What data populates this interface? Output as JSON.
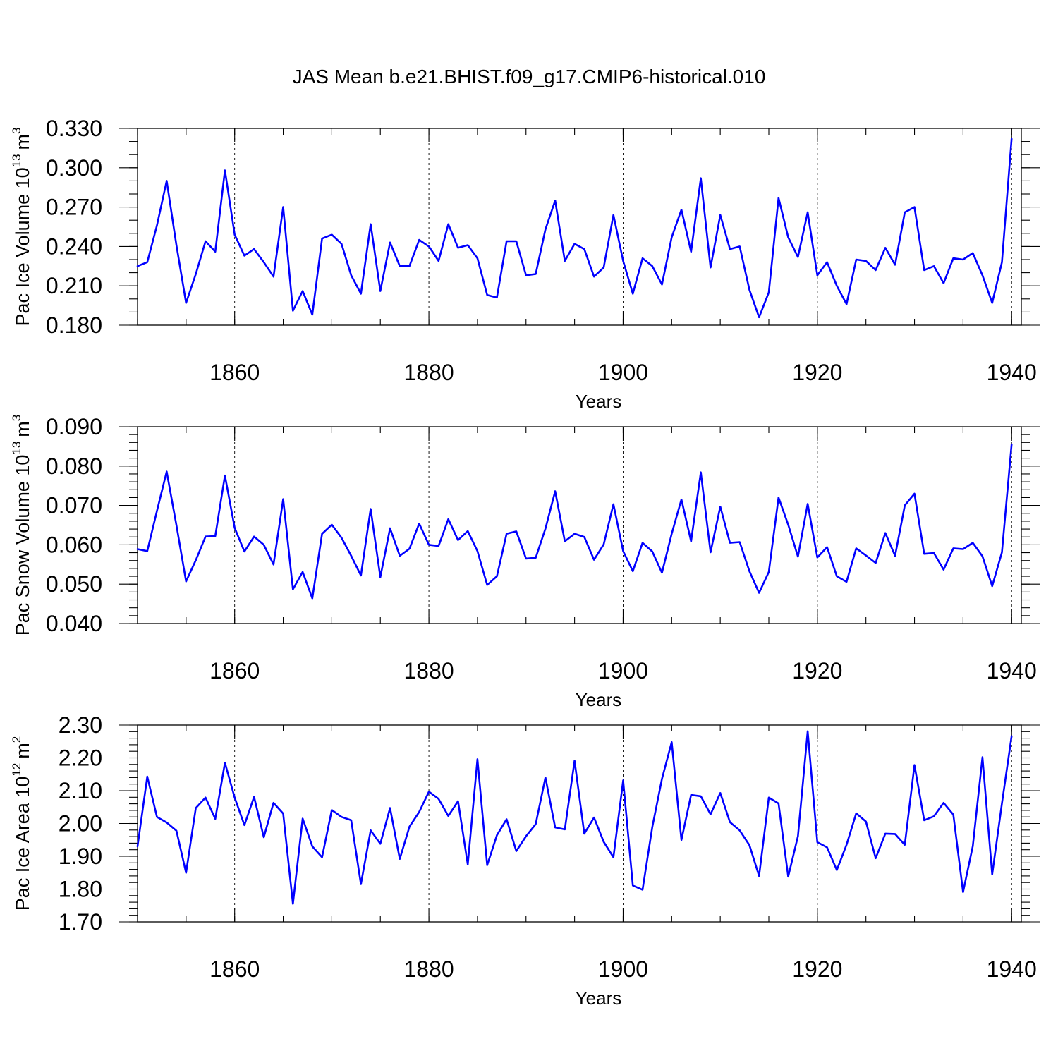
{
  "title": "JAS Mean b.e21.BHIST.f09_g17.CMIP6-historical.010",
  "colors": {
    "series": "#0000ff",
    "axis": "#000000",
    "background": "#ffffff"
  },
  "chart_data": [
    {
      "type": "line",
      "name": "ice-volume",
      "ylabel": "Pac Ice Volume 10",
      "ylabel_exp": "13",
      "ylabel_unit": "m",
      "ylabel_unit_exp": "3",
      "xlabel": "Years",
      "xlim": [
        1850,
        1941
      ],
      "ylim": [
        0.18,
        0.33
      ],
      "yticks": [
        0.18,
        0.21,
        0.24,
        0.27,
        0.3,
        0.33
      ],
      "ytick_labels": [
        "0.180",
        "0.210",
        "0.240",
        "0.270",
        "0.300",
        "0.330"
      ],
      "yminor": 0.01,
      "xticks": [
        1860,
        1880,
        1900,
        1920,
        1940
      ],
      "xtick_labels": [
        "1860",
        "1880",
        "1900",
        "1920",
        "1940"
      ],
      "x_start": 1850,
      "values": [
        0.225,
        0.228,
        0.256,
        0.29,
        0.241,
        0.197,
        0.219,
        0.244,
        0.236,
        0.298,
        0.249,
        0.233,
        0.238,
        0.228,
        0.217,
        0.27,
        0.191,
        0.206,
        0.188,
        0.246,
        0.249,
        0.242,
        0.218,
        0.204,
        0.257,
        0.206,
        0.243,
        0.225,
        0.225,
        0.245,
        0.24,
        0.229,
        0.257,
        0.239,
        0.241,
        0.231,
        0.203,
        0.201,
        0.244,
        0.244,
        0.218,
        0.219,
        0.253,
        0.275,
        0.229,
        0.242,
        0.238,
        0.217,
        0.224,
        0.264,
        0.229,
        0.204,
        0.231,
        0.225,
        0.211,
        0.247,
        0.268,
        0.236,
        0.292,
        0.224,
        0.264,
        0.238,
        0.24,
        0.207,
        0.186,
        0.205,
        0.277,
        0.247,
        0.232,
        0.266,
        0.218,
        0.228,
        0.21,
        0.196,
        0.23,
        0.229,
        0.222,
        0.239,
        0.226,
        0.266,
        0.27,
        0.222,
        0.225,
        0.212,
        0.231,
        0.23,
        0.235,
        0.218,
        0.197,
        0.228,
        0.322
      ]
    },
    {
      "type": "line",
      "name": "snow-volume",
      "ylabel": "Pac Snow Volume 10",
      "ylabel_exp": "13",
      "ylabel_unit": "m",
      "ylabel_unit_exp": "3",
      "xlabel": "Years",
      "xlim": [
        1850,
        1941
      ],
      "ylim": [
        0.04,
        0.09
      ],
      "yticks": [
        0.04,
        0.05,
        0.06,
        0.07,
        0.08,
        0.09
      ],
      "ytick_labels": [
        "0.040",
        "0.050",
        "0.060",
        "0.070",
        "0.080",
        "0.090"
      ],
      "yminor": 0.002,
      "xticks": [
        1860,
        1880,
        1900,
        1920,
        1940
      ],
      "xtick_labels": [
        "1860",
        "1880",
        "1900",
        "1920",
        "1940"
      ],
      "x_start": 1850,
      "values": [
        0.0589,
        0.0584,
        0.0686,
        0.0786,
        0.065,
        0.0507,
        0.0561,
        0.0621,
        0.0622,
        0.0776,
        0.0643,
        0.0583,
        0.0621,
        0.06,
        0.055,
        0.0716,
        0.0487,
        0.0531,
        0.0464,
        0.0628,
        0.0651,
        0.0618,
        0.0572,
        0.0522,
        0.0691,
        0.0518,
        0.0642,
        0.0572,
        0.059,
        0.0654,
        0.06,
        0.0597,
        0.0665,
        0.0612,
        0.0635,
        0.0584,
        0.0498,
        0.052,
        0.0628,
        0.0634,
        0.0565,
        0.0567,
        0.0641,
        0.0736,
        0.0609,
        0.0628,
        0.062,
        0.0562,
        0.0601,
        0.0703,
        0.0584,
        0.0533,
        0.0605,
        0.0583,
        0.0529,
        0.0628,
        0.0715,
        0.0609,
        0.0784,
        0.0581,
        0.0697,
        0.0605,
        0.0607,
        0.0533,
        0.0478,
        0.0531,
        0.072,
        0.0651,
        0.057,
        0.0704,
        0.0568,
        0.0594,
        0.052,
        0.0506,
        0.0591,
        0.0573,
        0.0554,
        0.063,
        0.0572,
        0.07,
        0.073,
        0.0577,
        0.0579,
        0.0537,
        0.0591,
        0.0589,
        0.0605,
        0.0571,
        0.0495,
        0.0581,
        0.0855
      ]
    },
    {
      "type": "line",
      "name": "ice-area",
      "ylabel": "Pac Ice Area 10",
      "ylabel_exp": "12",
      "ylabel_unit": "m",
      "ylabel_unit_exp": "2",
      "xlabel": "Years",
      "xlim": [
        1850,
        1941
      ],
      "ylim": [
        1.7,
        2.3
      ],
      "yticks": [
        1.7,
        1.8,
        1.9,
        2.0,
        2.1,
        2.2,
        2.3
      ],
      "ytick_labels": [
        "1.70",
        "1.80",
        "1.90",
        "2.00",
        "2.10",
        "2.20",
        "2.30"
      ],
      "yminor": 0.02,
      "xticks": [
        1860,
        1880,
        1900,
        1920,
        1940
      ],
      "xtick_labels": [
        "1860",
        "1880",
        "1900",
        "1920",
        "1940"
      ],
      "x_start": 1850,
      "values": [
        1.93,
        2.143,
        2.02,
        2.003,
        1.978,
        1.85,
        2.047,
        2.079,
        2.014,
        2.185,
        2.079,
        1.995,
        2.081,
        1.958,
        2.063,
        2.03,
        1.755,
        2.015,
        1.93,
        1.897,
        2.041,
        2.02,
        2.01,
        1.815,
        1.979,
        1.938,
        2.047,
        1.892,
        1.99,
        2.035,
        2.097,
        2.075,
        2.023,
        2.068,
        1.875,
        2.196,
        1.873,
        1.964,
        2.013,
        1.916,
        1.961,
        1.998,
        2.14,
        1.988,
        1.982,
        2.191,
        1.969,
        2.018,
        1.944,
        1.897,
        2.131,
        1.811,
        1.798,
        1.989,
        2.136,
        2.248,
        1.95,
        2.087,
        2.083,
        2.028,
        2.093,
        2.004,
        1.979,
        1.934,
        1.84,
        2.079,
        2.061,
        1.838,
        1.961,
        2.281,
        1.943,
        1.927,
        1.858,
        1.935,
        2.031,
        2.006,
        1.894,
        1.969,
        1.968,
        1.935,
        2.178,
        2.01,
        2.022,
        2.063,
        2.027,
        1.791,
        1.931,
        2.202,
        1.845,
        2.061,
        2.266
      ]
    }
  ]
}
